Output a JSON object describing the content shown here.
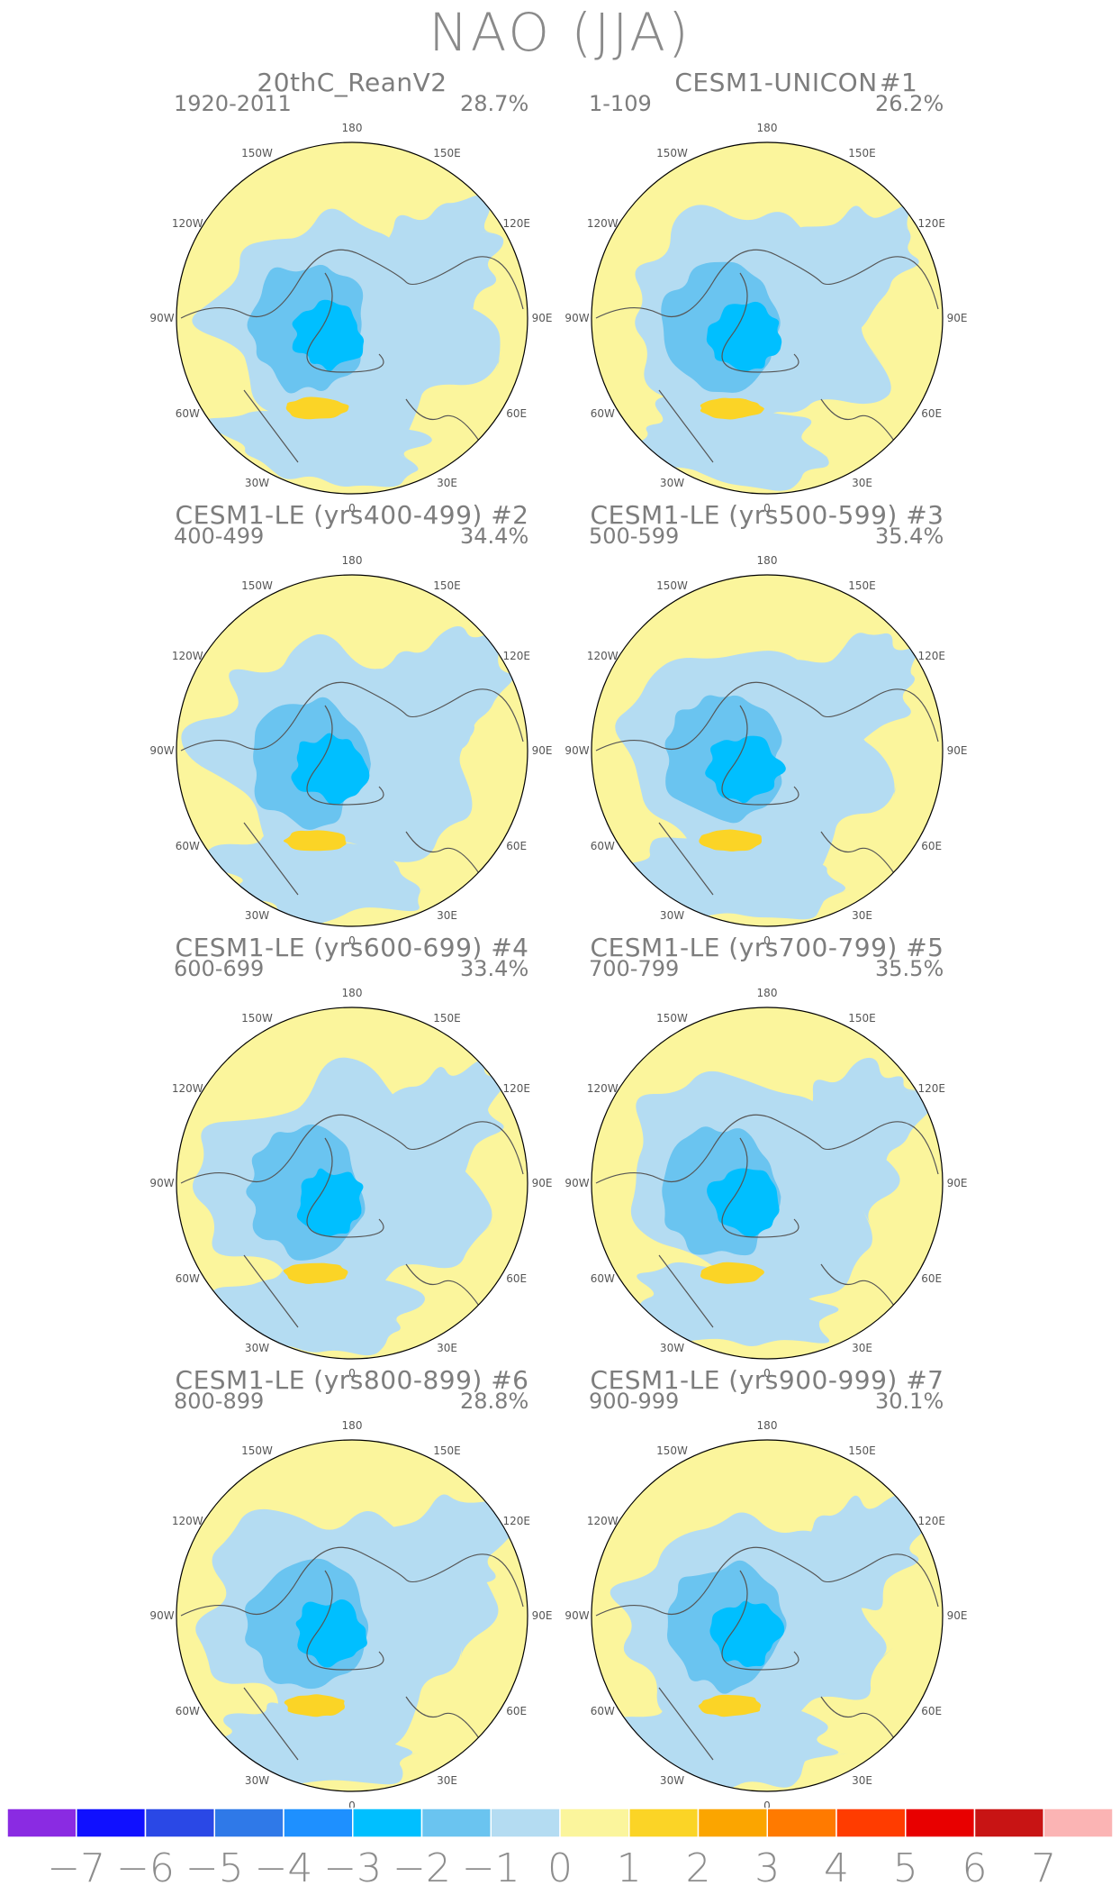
{
  "title": "NAO (JJA)",
  "panels": [
    {
      "title": "20thC_ReanV2",
      "tag": "",
      "period": "1920-2011",
      "variance": "28.7%"
    },
    {
      "title": "CESM1-UNICON",
      "tag": "#1",
      "period": "1-109",
      "variance": "26.2%"
    },
    {
      "title": "CESM1-LE (yrs400-499) #2",
      "tag": "",
      "period": "400-499",
      "variance": "34.4%"
    },
    {
      "title": "CESM1-LE (yrs500-599) #3",
      "tag": "",
      "period": "500-599",
      "variance": "35.4%"
    },
    {
      "title": "CESM1-LE (yrs600-699) #4",
      "tag": "",
      "period": "600-699",
      "variance": "33.4%"
    },
    {
      "title": "CESM1-LE (yrs700-799) #5",
      "tag": "",
      "period": "700-799",
      "variance": "35.5%"
    },
    {
      "title": "CESM1-LE (yrs800-899) #6",
      "tag": "",
      "period": "800-899",
      "variance": "28.8%"
    },
    {
      "title": "CESM1-LE (yrs900-999) #7",
      "tag": "",
      "period": "900-999",
      "variance": "30.1%"
    }
  ],
  "longitude_labels": [
    "180",
    "150E",
    "120E",
    "90E",
    "60E",
    "30E",
    "0",
    "30W",
    "60W",
    "90W",
    "120W",
    "150W"
  ],
  "colorbar": {
    "labels": [
      "-7",
      "-6",
      "-5",
      "-4",
      "-3",
      "-2",
      "-1",
      "0",
      "1",
      "2",
      "3",
      "4",
      "5",
      "6",
      "7"
    ],
    "colors": [
      "#8a2be2",
      "#1010ff",
      "#2a48e6",
      "#2f79e8",
      "#1e90ff",
      "#00bfff",
      "#6ac4f0",
      "#b4dcf2",
      "#fbf59c",
      "#fbd426",
      "#fba500",
      "#ff7a00",
      "#ff3c00",
      "#e80000",
      "#c81414",
      "#fbb4b4"
    ]
  },
  "colors": {
    "land_outline": "#555555",
    "positive_light": "#fbf59c",
    "negative_light": "#b4dcf2",
    "negative_mid": "#6ac4f0",
    "negative_strong": "#00bfff",
    "positive_mid": "#fbd426"
  }
}
